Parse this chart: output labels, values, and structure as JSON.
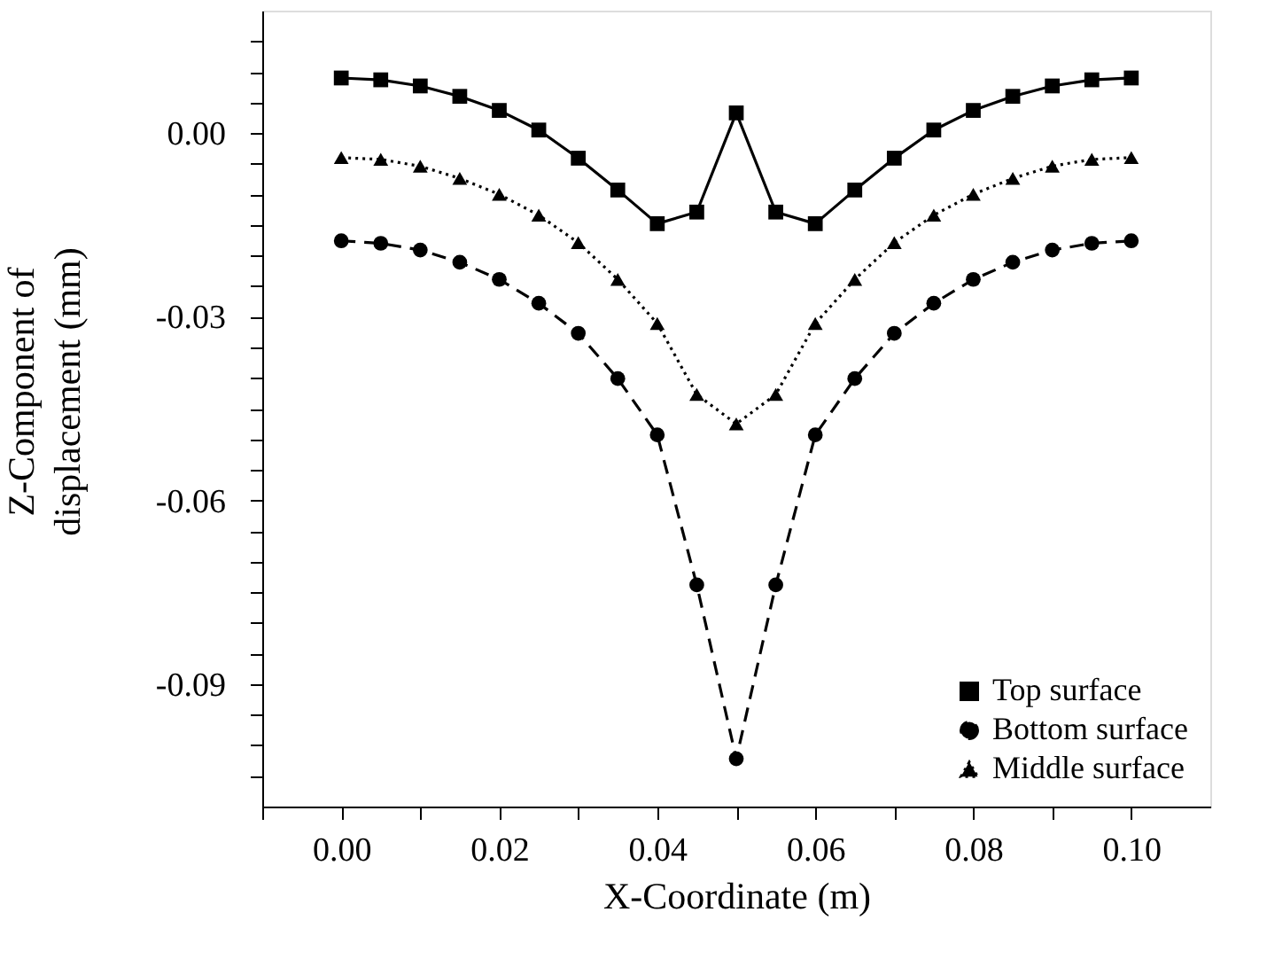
{
  "chart_data": {
    "type": "line",
    "xlabel": "X-Coordinate (m)",
    "ylabel": "Z-Component of displacement (mm)",
    "x": [
      0,
      0.005,
      0.01,
      0.015,
      0.02,
      0.025,
      0.03,
      0.035,
      0.04,
      0.045,
      0.05,
      0.055,
      0.06,
      0.065,
      0.07,
      0.075,
      0.08,
      0.085,
      0.09,
      0.095,
      0.1
    ],
    "series": [
      {
        "name": "Top surface",
        "color": "#000000",
        "marker": "square",
        "line_style": "solid",
        "values": [
          0.009,
          0.0087,
          0.0077,
          0.006,
          0.0037,
          0.0005,
          -0.0041,
          -0.0093,
          -0.0148,
          -0.0129,
          0.0033,
          -0.0129,
          -0.0148,
          -0.0093,
          -0.0041,
          0.0005,
          0.0037,
          0.006,
          0.0077,
          0.0087,
          0.009
        ]
      },
      {
        "name": "Bottom surface",
        "color": "#000000",
        "marker": "circle",
        "line_style": "dashed",
        "values": [
          -0.0176,
          -0.018,
          -0.0191,
          -0.0211,
          -0.0239,
          -0.0278,
          -0.0327,
          -0.0401,
          -0.0493,
          -0.0738,
          -0.1022,
          -0.0738,
          -0.0493,
          -0.0401,
          -0.0327,
          -0.0278,
          -0.0239,
          -0.0211,
          -0.0191,
          -0.018,
          -0.0176
        ]
      },
      {
        "name": "Middle surface",
        "color": "#000000",
        "marker": "triangle",
        "line_style": "dotted",
        "values": [
          -0.004,
          -0.0043,
          -0.0054,
          -0.0074,
          -0.01,
          -0.0134,
          -0.0179,
          -0.0239,
          -0.0311,
          -0.0427,
          -0.0475,
          -0.0427,
          -0.0311,
          -0.0239,
          -0.0179,
          -0.0134,
          -0.01,
          -0.0074,
          -0.0054,
          -0.0043,
          -0.004
        ]
      }
    ],
    "xlim": [
      -0.01,
      0.11
    ],
    "xticks": [
      {
        "value": -0.01,
        "label": null
      },
      "0.00",
      {
        "value": 0.01,
        "label": null
      },
      {
        "value": 0.02,
        "label": "0.02"
      },
      {
        "value": 0.03,
        "label": null
      },
      {
        "value": 0.04,
        "label": "0.04"
      },
      {
        "value": 0.05,
        "label": null
      },
      {
        "value": 0.06,
        "label": "0.06"
      },
      {
        "value": 0.07,
        "label": null
      },
      {
        "value": 0.08,
        "label": "0.08"
      },
      {
        "value": 0.09,
        "label": null
      },
      {
        "value": 0.1,
        "label": "0.10"
      }
    ],
    "ylim": [
      -0.11,
      0.02
    ],
    "yticks": [
      {
        "value": 0.015,
        "label": null
      },
      {
        "value": 0.01,
        "label": null
      },
      {
        "value": 0.005,
        "label": null
      },
      {
        "value": 0,
        "label": "0.00"
      },
      {
        "value": -0.005,
        "label": null
      },
      {
        "value": -0.01,
        "label": null
      },
      {
        "value": -0.015,
        "label": null
      },
      {
        "value": -0.02,
        "label": null
      },
      {
        "value": -0.025,
        "label": null
      },
      {
        "value": -0.03,
        "label": "-0.03"
      },
      {
        "value": -0.035,
        "label": null
      },
      {
        "value": -0.04,
        "label": null
      },
      {
        "value": -0.045,
        "label": null
      },
      {
        "value": -0.05,
        "label": null
      },
      {
        "value": -0.055,
        "label": null
      },
      {
        "value": -0.06,
        "label": "-0.06"
      },
      {
        "value": -0.065,
        "label": null
      },
      {
        "value": -0.07,
        "label": null
      },
      {
        "value": -0.075,
        "label": null
      },
      {
        "value": -0.08,
        "label": null
      },
      {
        "value": -0.085,
        "label": null
      },
      {
        "value": -0.09,
        "label": "-0.09"
      },
      {
        "value": -0.095,
        "label": null
      },
      {
        "value": -0.1,
        "label": null
      },
      {
        "value": -0.105,
        "label": null
      }
    ],
    "grid": false,
    "legend": "bottom right"
  }
}
